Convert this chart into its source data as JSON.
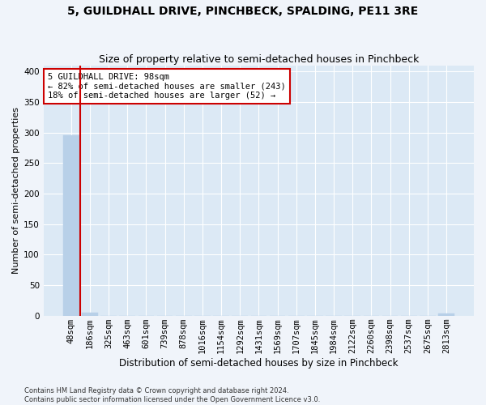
{
  "title": "5, GUILDHALL DRIVE, PINCHBECK, SPALDING, PE11 3RE",
  "subtitle": "Size of property relative to semi-detached houses in Pinchbeck",
  "xlabel": "Distribution of semi-detached houses by size in Pinchbeck",
  "ylabel": "Number of semi-detached properties",
  "bar_labels": [
    "48sqm",
    "186sqm",
    "325sqm",
    "463sqm",
    "601sqm",
    "739sqm",
    "878sqm",
    "1016sqm",
    "1154sqm",
    "1292sqm",
    "1431sqm",
    "1569sqm",
    "1707sqm",
    "1845sqm",
    "1984sqm",
    "2122sqm",
    "2260sqm",
    "2398sqm",
    "2537sqm",
    "2675sqm",
    "2813sqm"
  ],
  "bar_values": [
    295,
    5,
    0,
    0,
    0,
    0,
    0,
    0,
    0,
    0,
    0,
    0,
    0,
    0,
    0,
    0,
    0,
    0,
    0,
    0,
    4
  ],
  "bar_color": "#b8d0e8",
  "bar_edge_color": "#b8d0e8",
  "plot_bg_color": "#dce9f5",
  "fig_bg_color": "#f0f4fa",
  "grid_color": "#ffffff",
  "red_line_color": "#cc0000",
  "annotation_text": "5 GUILDHALL DRIVE: 98sqm\n← 82% of semi-detached houses are smaller (243)\n18% of semi-detached houses are larger (52) →",
  "annotation_box_color": "#ffffff",
  "annotation_box_edge_color": "#cc0000",
  "footer": "Contains HM Land Registry data © Crown copyright and database right 2024.\nContains public sector information licensed under the Open Government Licence v3.0.",
  "ylim": [
    0,
    410
  ],
  "yticks": [
    0,
    50,
    100,
    150,
    200,
    250,
    300,
    350,
    400
  ],
  "title_fontsize": 10,
  "subtitle_fontsize": 9,
  "ylabel_fontsize": 8,
  "xlabel_fontsize": 8.5,
  "tick_fontsize": 7.5,
  "annotation_fontsize": 7.5,
  "footer_fontsize": 6
}
